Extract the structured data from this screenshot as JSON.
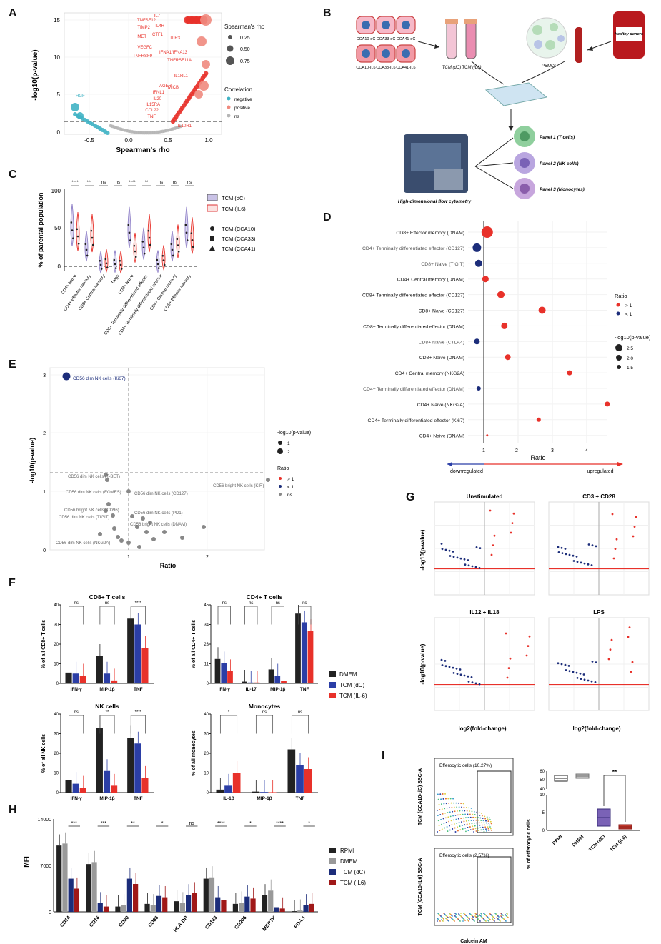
{
  "panel_letters": {
    "A": "A",
    "B": "B",
    "C": "C",
    "D": "D",
    "E": "E",
    "F": "F",
    "G": "G",
    "H": "H",
    "I": "I"
  },
  "colors": {
    "red": "#e8312a",
    "salmon": "#f08a7e",
    "teal": "#40b3c4",
    "grey": "#b5b5b5",
    "navy": "#1c2d7a",
    "blue": "#2b3ea6",
    "black": "#222222",
    "violet": "#8f80c7",
    "darkred": "#c0392b"
  },
  "panelA": {
    "ylabel": "-log10(p-value)",
    "xlabel": "Spearman's rho",
    "yticks": [
      "0",
      "5",
      "10",
      "15"
    ],
    "xticks": [
      "-0.5",
      "0.0",
      "0.5",
      "1.0"
    ],
    "legend_size_title": "Spearman's rho",
    "legend_sizes": [
      "0.25",
      "0.50",
      "0.75"
    ],
    "legend_color_title": "Correlation",
    "legend_colors": [
      "negative",
      "positive",
      "ns"
    ],
    "gene_labels": [
      "TNFSF12",
      "IL7",
      "TIMP2",
      "IL4R",
      "MET",
      "CTF1",
      "TLR3",
      "VEGFC",
      "IFNA1/IFNA13",
      "TNFRSF9",
      "TNFRSF11A",
      "IL1RL1",
      "AGER",
      "MICB",
      "IFNL1",
      "IL20",
      "IL15RA",
      "CCL22",
      "TNF",
      "IL10R1",
      "HGF"
    ]
  },
  "panelB": {
    "cells_top": [
      "CCA10-dC",
      "CCA33-dC",
      "CCA41-dC"
    ],
    "cells_bottom": [
      "CCA10-IL6",
      "CCA33-IL6",
      "CCA41-IL6"
    ],
    "tubes": [
      "TCM (dC)",
      "TCM (IL6)"
    ],
    "pbmc": "PBMCs",
    "donor_bag": "Healthy donors",
    "cytometer": "High-dimensional flow cytometry",
    "panels": [
      "Panel 1 (T cells)",
      "Panel 2 (NK cells)",
      "Panel 3 (Monocytes)"
    ]
  },
  "panelC": {
    "ylabel": "% of parental population",
    "yticks": [
      "0",
      "50",
      "100"
    ],
    "categories": [
      "CD4+ Naive",
      "CD4+ Effector memory",
      "CD8+ Central memory",
      "Tregs",
      "CD8+ Naive",
      "CD8+ Terminally differentiated effector",
      "CD4+ Terminally differentiated effector",
      "CD4+ Central memory",
      "CD8+ Effector memory"
    ],
    "sig": [
      "****",
      "***",
      "ns",
      "ns",
      "****",
      "**",
      "ns",
      "ns",
      "ns"
    ],
    "legend": [
      "TCM (dC)",
      "TCM (IL6)",
      "TCM (CCA10)",
      "TCM (CCA33)",
      "TCM (CCA41)"
    ]
  },
  "panelD": {
    "rows": [
      "CD8+ Effector memory (DNAM)",
      "CD4+ Terminally differentiated effector (CD127)",
      "CD8+ Naive (TIGIT)",
      "CD4+ Central memory (DNAM)",
      "CD8+ Terminally differentiated effector (CD127)",
      "CD8+ Naive (CD127)",
      "CD8+ Terminally differentiated effector (DNAM)",
      "CD8+ Naive (CTLA4)",
      "CD8+ Naive (DNAM)",
      "CD4+ Central memory (NKG2A)",
      "CD4+ Terminally differentiated effector (DNAM)",
      "CD4+ Naive (NKG2A)",
      "CD4+ Terminally differentiated effector (Ki67)",
      "CD4+ Naive (DNAM)"
    ],
    "xticks": [
      "1",
      "2",
      "3",
      "4"
    ],
    "xlabel": "Ratio",
    "down": "downregulated",
    "up": "upregulated",
    "legend_ratio_title": "Ratio",
    "legend_ratio": [
      "> 1",
      "< 1"
    ],
    "legend_p_title": "-log10(p-value)",
    "legend_p": [
      "2.5",
      "2.0",
      "1.5"
    ]
  },
  "panelE": {
    "ylabel": "-log10(p-value)",
    "xlabel": "Ratio",
    "yticks": [
      "0",
      "1",
      "2",
      "3"
    ],
    "xticks": [
      "1",
      "2"
    ],
    "labels": [
      "CD56 dim NK cells (Ki67)",
      "CD56 dim NK cells (T-BET)",
      "CD56 dim NK cells (EOMES)",
      "CD56 dim NK cells (CD127)",
      "CD56 bright NK cells (KIR)",
      "CD56 bright NK cells (CD96)",
      "CD56 dim NK cells (TIGIT)",
      "CD56 dim NK cells (PD1)",
      "CD56 bright NK cells (DNAM)",
      "CD56 dim NK cells (NKG2A)"
    ],
    "legend_p_title": "-log10(p-value)",
    "legend_p": [
      "1",
      "2"
    ],
    "legend_ratio_title": "Ratio",
    "legend_ratio": [
      "> 1",
      "< 1",
      "ns"
    ]
  },
  "panelF": {
    "legend": [
      "DMEM",
      "TCM (dC)",
      "TCM (IL-6)"
    ],
    "cd8": {
      "title": "CD8+ T cells",
      "ylabel": "% of all CD8+ T cells",
      "cats": [
        "IFN-γ",
        "MIP-1β",
        "TNF"
      ],
      "sig": [
        "ns",
        "ns",
        "****"
      ]
    },
    "cd4": {
      "title": "CD4+ T cells",
      "ylabel": "% of all CD4+ T cells",
      "cats": [
        "IFN-γ",
        "IL-17",
        "MIP-1β",
        "TNF"
      ],
      "sig": [
        "ns",
        "ns",
        "ns",
        "ns"
      ]
    },
    "nk": {
      "title": "NK cells",
      "ylabel": "% of all NK cells",
      "cats": [
        "IFN-γ",
        "MIP-1β",
        "TNF"
      ],
      "sig": [
        "ns",
        "**",
        "****"
      ]
    },
    "mono": {
      "title": "Monocytes",
      "ylabel": "% of all monocytes",
      "cats": [
        "IL-1β",
        "MIP-1β",
        "TNF"
      ],
      "sig": [
        "*",
        "ns",
        "ns"
      ]
    }
  },
  "panelG": {
    "titles": [
      "Unstimulated",
      "CD3 + CD28",
      "IL12 + IL18",
      "LPS"
    ],
    "ylabel": "-log10(p-value)",
    "xlabel": "log2(fold-change)"
  },
  "panelH": {
    "ylabel": "MFI",
    "yticks": [
      "0",
      "7000",
      "14000"
    ],
    "cats": [
      "CD14",
      "CD16",
      "CD80",
      "CD86",
      "HLA-DR",
      "CD163",
      "CD206",
      "MERTK",
      "PD-L1"
    ],
    "sig": [
      "***",
      "***",
      "**",
      "*",
      "ns",
      "****",
      "*",
      "****",
      "*"
    ],
    "legend": [
      "RPMI",
      "DMEM",
      "TCM (dC)",
      "TCM (IL6)"
    ]
  },
  "panelI": {
    "flow1_ylabel": "TCM (CCA10-dC) SSC-A",
    "flow2_ylabel": "TCM (CCA10-IL6) SSC-A",
    "gate1": "Efferocytic cells (10.27%)",
    "gate2": "Efferocytic cells (2.57%)",
    "xlabel": "Calcein AM",
    "box_ylabel": "% of efferocytic cells",
    "box_cats": [
      "RPMI",
      "DMEM",
      "TCM (dC)",
      "TCM (IL6)"
    ],
    "sig": "**"
  },
  "chart_data": [
    {
      "type": "bar",
      "title": "CD8+ T cells",
      "categories": [
        "IFN-γ",
        "MIP-1β",
        "TNF"
      ],
      "series": [
        {
          "name": "DMEM",
          "values": [
            5.5,
            14,
            33
          ]
        },
        {
          "name": "TCM (dC)",
          "values": [
            5,
            5,
            30
          ]
        },
        {
          "name": "TCM (IL-6)",
          "values": [
            4,
            1.5,
            18
          ]
        }
      ]
    },
    {
      "type": "bar",
      "title": "CD4+ T cells",
      "categories": [
        "IFN-γ",
        "IL-17",
        "MIP-1β",
        "TNF"
      ],
      "series": [
        {
          "name": "DMEM",
          "values": [
            14,
            1,
            8,
            40
          ]
        },
        {
          "name": "TCM (dC)",
          "values": [
            11.5,
            0.5,
            4.5,
            35
          ]
        },
        {
          "name": "TCM (IL-6)",
          "values": [
            7,
            0.5,
            1.5,
            30
          ]
        }
      ]
    },
    {
      "type": "bar",
      "title": "NK cells",
      "categories": [
        "IFN-γ",
        "MIP-1β",
        "TNF"
      ],
      "series": [
        {
          "name": "DMEM",
          "values": [
            6.5,
            33,
            28
          ]
        },
        {
          "name": "TCM (dC)",
          "values": [
            4.5,
            11,
            25
          ]
        },
        {
          "name": "TCM (IL-6)",
          "values": [
            2.5,
            3.5,
            7.5
          ]
        }
      ]
    },
    {
      "type": "bar",
      "title": "Monocytes",
      "categories": [
        "IL-1β",
        "MIP-1β",
        "TNF"
      ],
      "series": [
        {
          "name": "DMEM",
          "values": [
            1.5,
            0.5,
            22
          ]
        },
        {
          "name": "TCM (dC)",
          "values": [
            3.5,
            0.3,
            14
          ]
        },
        {
          "name": "TCM (IL-6)",
          "values": [
            10,
            0.2,
            12
          ]
        }
      ]
    },
    {
      "type": "bar",
      "title": "",
      "ylim": [
        0,
        14000
      ],
      "categories": [
        "CD14",
        "CD16",
        "CD80",
        "CD86",
        "HLA-DR",
        "CD163",
        "CD206",
        "MERTK",
        "PD-L1"
      ],
      "series": [
        {
          "name": "RPMI",
          "values": [
            10000,
            7200,
            800,
            1200,
            1600,
            5000,
            1200,
            2500,
            100
          ]
        },
        {
          "name": "DMEM",
          "values": [
            10300,
            7500,
            1000,
            1000,
            1300,
            5200,
            1400,
            3200,
            200
          ]
        },
        {
          "name": "TCM (dC)",
          "values": [
            5000,
            1300,
            5000,
            2400,
            2500,
            2200,
            2300,
            700,
            1000
          ]
        },
        {
          "name": "TCM (IL6)",
          "values": [
            3500,
            800,
            4200,
            2200,
            2800,
            1800,
            2000,
            500,
            1200
          ]
        }
      ]
    }
  ]
}
